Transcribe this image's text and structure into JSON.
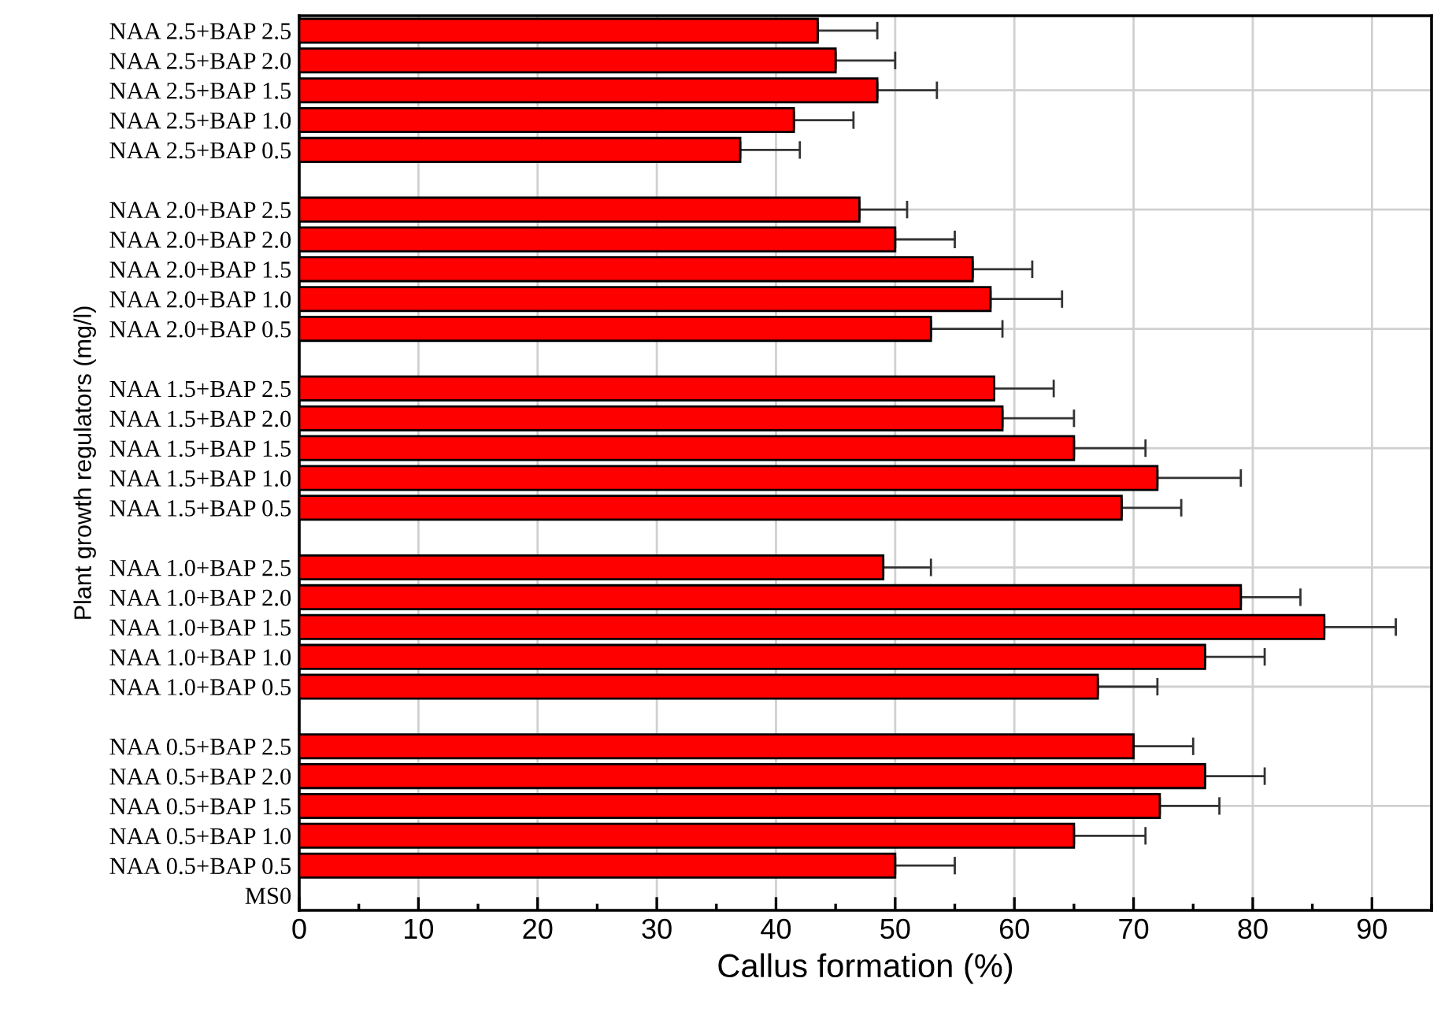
{
  "chart_data": {
    "type": "bar",
    "orientation": "horizontal",
    "xlabel": "Callus formation (%)",
    "ylabel": "Plant growth regulators (mg/l)",
    "categories": [
      "NAA 2.5+BAP 2.5",
      "NAA 2.5+BAP 2.0",
      "NAA 2.5+BAP 1.5",
      "NAA 2.5+BAP 1.0",
      "NAA 2.5+BAP 0.5",
      null,
      "NAA 2.0+BAP 2.5",
      "NAA 2.0+BAP 2.0",
      "NAA 2.0+BAP 1.5",
      "NAA 2.0+BAP 1.0",
      "NAA 2.0+BAP 0.5",
      null,
      "NAA 1.5+BAP 2.5",
      "NAA 1.5+BAP 2.0",
      "NAA 1.5+BAP 1.5",
      "NAA 1.5+BAP 1.0",
      "NAA 1.5+BAP 0.5",
      null,
      "NAA 1.0+BAP 2.5",
      "NAA 1.0+BAP 2.0",
      "NAA 1.0+BAP 1.5",
      "NAA 1.0+BAP 1.0",
      "NAA 1.0+BAP 0.5",
      null,
      "NAA 0.5+BAP 2.5",
      "NAA 0.5+BAP 2.0",
      "NAA 0.5+BAP 1.5",
      "NAA 0.5+BAP 1.0",
      "NAA 0.5+BAP 0.5",
      "MS0"
    ],
    "values": [
      43.5,
      45,
      48.5,
      41.5,
      37,
      null,
      47,
      50,
      56.5,
      58,
      53,
      null,
      58.3,
      59,
      65,
      72,
      69,
      null,
      49,
      79,
      86,
      76,
      67,
      null,
      70,
      76,
      72.2,
      65,
      50,
      null
    ],
    "errors": [
      [
        43.5,
        48.5
      ],
      [
        45,
        50
      ],
      [
        48.5,
        53.5
      ],
      [
        41.5,
        46.5
      ],
      [
        37,
        42
      ],
      null,
      [
        47,
        51
      ],
      [
        50,
        55
      ],
      [
        56.5,
        61.5
      ],
      [
        58,
        64
      ],
      [
        53,
        59
      ],
      null,
      [
        58.3,
        63.3
      ],
      [
        59,
        65
      ],
      [
        65,
        71
      ],
      [
        72,
        79
      ],
      [
        69,
        74
      ],
      null,
      [
        49,
        53
      ],
      [
        79,
        84
      ],
      [
        86,
        92
      ],
      [
        76,
        81
      ],
      [
        67,
        72
      ],
      null,
      [
        70,
        75
      ],
      [
        76,
        81
      ],
      [
        72.2,
        77.2
      ],
      [
        65,
        71
      ],
      [
        50,
        55
      ],
      null
    ],
    "color": "#ff0000",
    "xlim": [
      0,
      95
    ],
    "xticks": [
      0,
      10,
      20,
      30,
      40,
      50,
      60,
      70,
      80,
      90
    ],
    "grid": true
  }
}
